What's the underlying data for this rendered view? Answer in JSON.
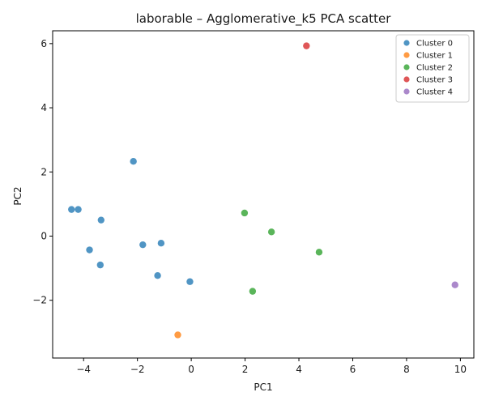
{
  "chart_data": {
    "type": "scatter",
    "title": "laborable – Agglomerative_k5 PCA scatter",
    "xlabel": "PC1",
    "ylabel": "PC2",
    "xlim": [
      -5.15,
      10.5
    ],
    "ylim": [
      -3.8,
      6.4
    ],
    "xticks": [
      -4,
      -2,
      0,
      2,
      4,
      6,
      8,
      10
    ],
    "yticks": [
      -2,
      0,
      2,
      4,
      6
    ],
    "grid": false,
    "legend_position": "top-right",
    "series": [
      {
        "name": "Cluster 0",
        "color": "#1f77b4",
        "points": [
          {
            "x": -2.15,
            "y": 2.33
          },
          {
            "x": -4.45,
            "y": 0.83
          },
          {
            "x": -4.2,
            "y": 0.83
          },
          {
            "x": -3.35,
            "y": 0.5
          },
          {
            "x": -3.78,
            "y": -0.43
          },
          {
            "x": -3.38,
            "y": -0.9
          },
          {
            "x": -1.8,
            "y": -0.27
          },
          {
            "x": -1.12,
            "y": -0.22
          },
          {
            "x": -1.25,
            "y": -1.23
          },
          {
            "x": -0.05,
            "y": -1.42
          }
        ]
      },
      {
        "name": "Cluster 1",
        "color": "#ff7f0e",
        "points": [
          {
            "x": -0.5,
            "y": -3.08
          }
        ]
      },
      {
        "name": "Cluster 2",
        "color": "#2ca02c",
        "points": [
          {
            "x": 1.98,
            "y": 0.72
          },
          {
            "x": 2.98,
            "y": 0.13
          },
          {
            "x": 4.75,
            "y": -0.5
          },
          {
            "x": 2.28,
            "y": -1.72
          }
        ]
      },
      {
        "name": "Cluster 3",
        "color": "#d62728",
        "points": [
          {
            "x": 4.28,
            "y": 5.93
          }
        ]
      },
      {
        "name": "Cluster 4",
        "color": "#9467bd",
        "points": [
          {
            "x": 9.8,
            "y": -1.52
          }
        ]
      }
    ]
  }
}
